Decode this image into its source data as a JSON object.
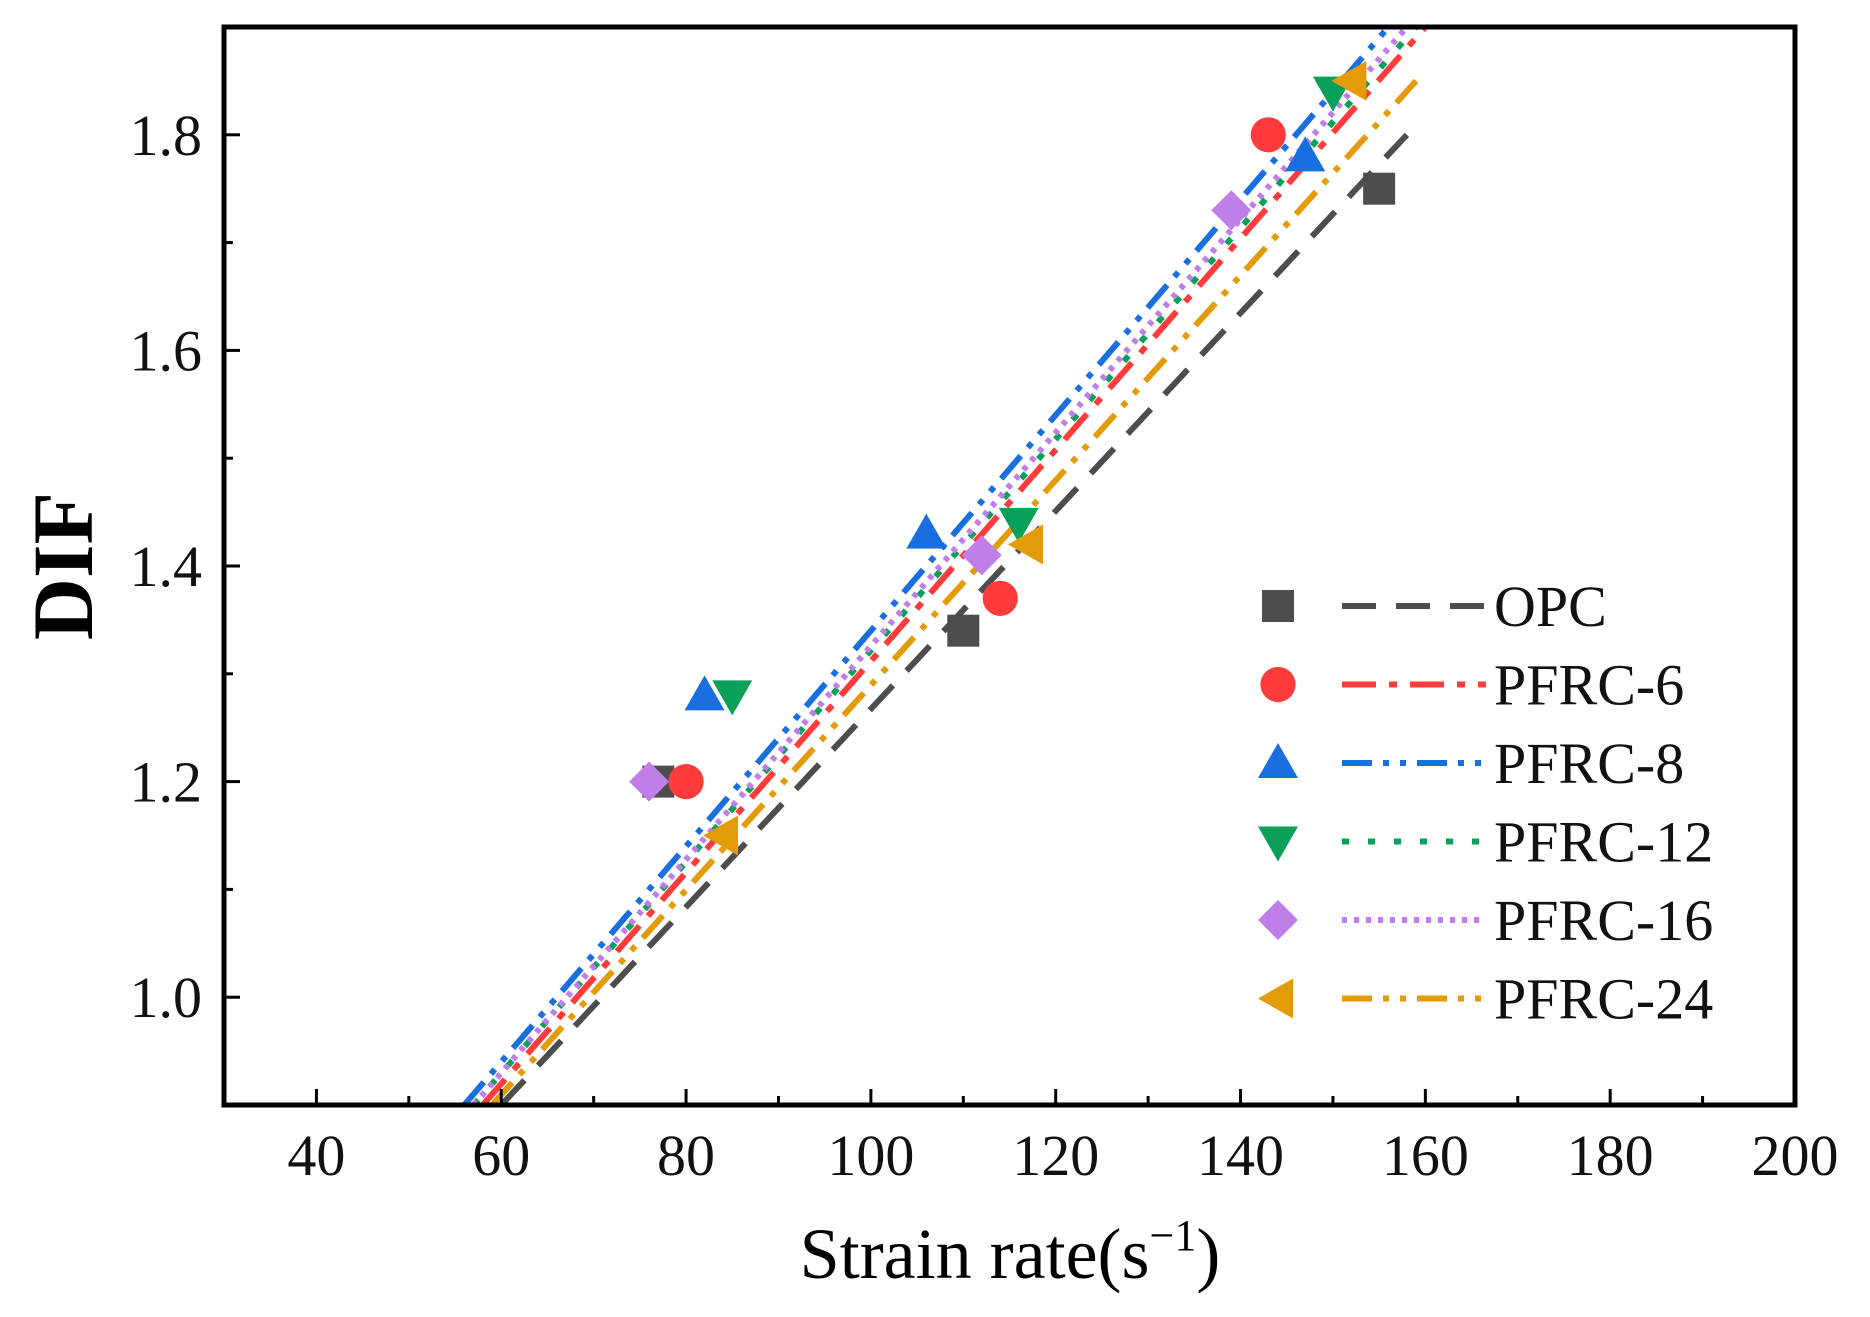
{
  "chart_data": {
    "type": "scatter",
    "title": "",
    "xlabel": "Strain rate(s",
    "xlabel_sup": "−1",
    "xlabel_close": ")",
    "ylabel": "DIF",
    "xlim": [
      30,
      200
    ],
    "ylim": [
      0.9,
      1.9
    ],
    "x_ticks": [
      40,
      60,
      80,
      100,
      120,
      140,
      160,
      180,
      200
    ],
    "x_tick_labels": [
      "40",
      "60",
      "80",
      "100",
      "120",
      "140",
      "160",
      "180",
      "200"
    ],
    "y_ticks": [
      1.0,
      1.2,
      1.4,
      1.6,
      1.8
    ],
    "y_tick_labels": [
      "1.0",
      "1.2",
      "1.4",
      "1.6",
      "1.8"
    ],
    "grid": false,
    "legend_position": "bottom-right",
    "series": [
      {
        "name": "OPC",
        "color": "#4d4d4d",
        "marker": "square",
        "line_style": "dash",
        "points": [
          [
            77,
            1.2
          ],
          [
            110,
            1.34
          ],
          [
            155,
            1.75
          ]
        ],
        "fit_line": [
          [
            60,
            0.9
          ],
          [
            158,
            1.8
          ]
        ]
      },
      {
        "name": "PFRC-6",
        "color": "#ff3b3b",
        "marker": "circle",
        "line_style": "dashdot",
        "points": [
          [
            80,
            1.2
          ],
          [
            114,
            1.37
          ],
          [
            143,
            1.8
          ]
        ],
        "fit_line": [
          [
            58,
            0.9
          ],
          [
            160,
            1.9
          ]
        ]
      },
      {
        "name": "PFRC-8",
        "color": "#1a6fe0",
        "marker": "triangle-up",
        "line_style": "dashdotdot",
        "points": [
          [
            82,
            1.28
          ],
          [
            106,
            1.43
          ],
          [
            147,
            1.78
          ]
        ],
        "fit_line": [
          [
            56,
            0.9
          ],
          [
            156,
            1.9
          ]
        ]
      },
      {
        "name": "PFRC-12",
        "color": "#0aa05a",
        "marker": "triangle-down",
        "line_style": "dot",
        "points": [
          [
            85,
            1.28
          ],
          [
            116,
            1.44
          ],
          [
            150,
            1.84
          ]
        ],
        "fit_line": [
          [
            57,
            0.9
          ],
          [
            159,
            1.9
          ]
        ]
      },
      {
        "name": "PFRC-16",
        "color": "#c07ee8",
        "marker": "diamond",
        "line_style": "fine-dot",
        "points": [
          [
            76,
            1.2
          ],
          [
            112,
            1.41
          ],
          [
            139,
            1.73
          ]
        ],
        "fit_line": [
          [
            57,
            0.9
          ],
          [
            158,
            1.9
          ]
        ]
      },
      {
        "name": "PFRC-24",
        "color": "#e39b08",
        "marker": "triangle-left",
        "line_style": "dashdotdot",
        "points": [
          [
            84,
            1.15
          ],
          [
            117,
            1.42
          ],
          [
            152,
            1.85
          ]
        ],
        "fit_line": [
          [
            59,
            0.9
          ],
          [
            159,
            1.85
          ]
        ]
      }
    ]
  }
}
